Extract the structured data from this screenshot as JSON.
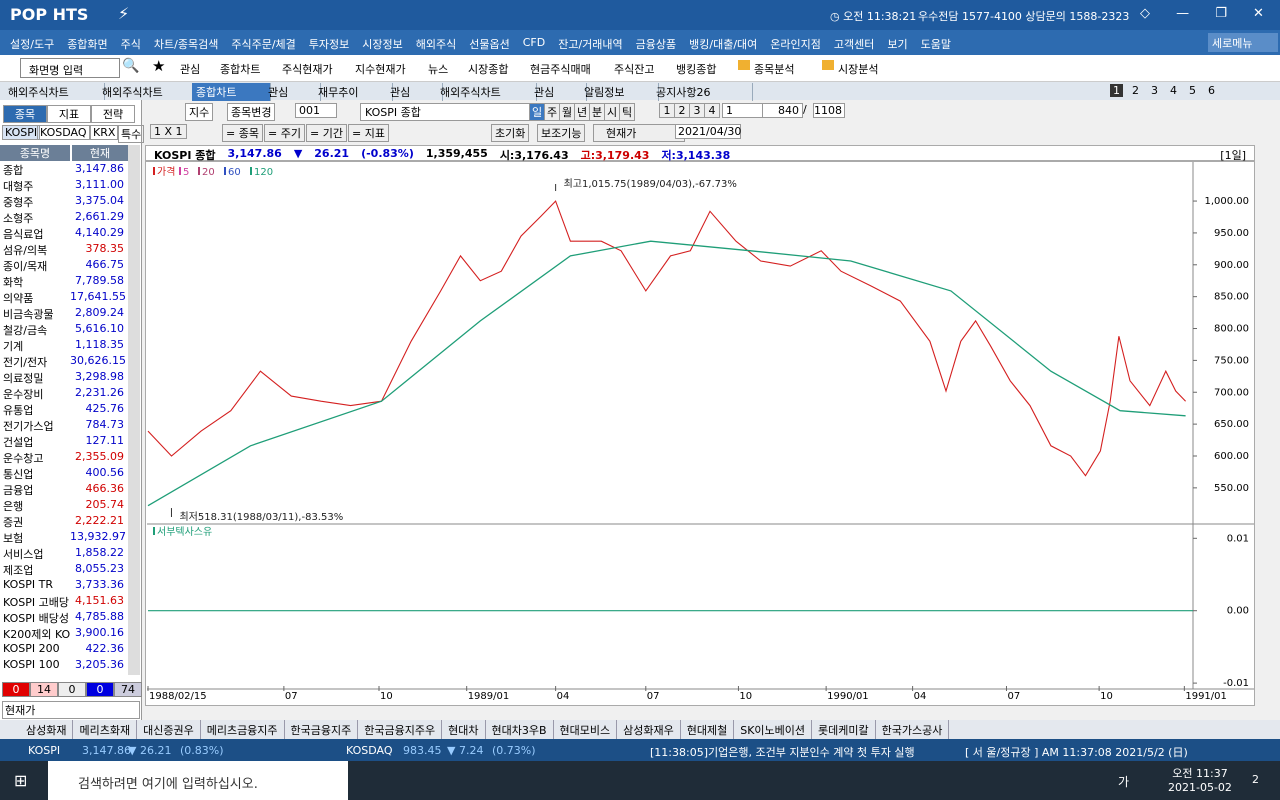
{
  "title_bar": {
    "logo": "POP HTS",
    "clock": "오전 11:38:21",
    "contact": "우수전담 1577-4100 상담문의 1588-2323"
  },
  "menu": [
    "설정/도구",
    "종합화면",
    "주식",
    "차트/종목검색",
    "주식주문/체결",
    "투자정보",
    "시장정보",
    "해외주식",
    "선물옵션",
    "CFD",
    "잔고/거래내역",
    "금융상품",
    "뱅킹/대출/대여",
    "온라인지점",
    "고객센터",
    "보기",
    "도움말"
  ],
  "menu_right": "세로메뉴",
  "toolbar": {
    "screen_input": "화면명 입력",
    "items": [
      "관심",
      "종합차트",
      "주식현재가",
      "지수현재가",
      "뉴스",
      "시장종합",
      "현금주식매매",
      "주식잔고",
      "뱅킹종합"
    ],
    "folders": [
      "종목분석",
      "시장분석"
    ]
  },
  "window_tabs": {
    "tabs": [
      "해외주식차트",
      "해외주식차트",
      "종합차트",
      "관심",
      "재무추이",
      "관심",
      "해외주식차트",
      "관심",
      "알림정보",
      "공지사항26"
    ],
    "pages": [
      "1",
      "2",
      "3",
      "4",
      "5",
      "6"
    ]
  },
  "left_panel": {
    "tabs": [
      "종목",
      "지표",
      "전략"
    ],
    "markets": [
      "KOSPI",
      "KOSDAQ",
      "KRX",
      "특수"
    ],
    "headers": [
      "종목명",
      "현재"
    ],
    "rows": [
      {
        "name": "종합",
        "value": "3,147.86",
        "color": "#0000c8"
      },
      {
        "name": "대형주",
        "value": "3,111.00",
        "color": "#0000c8"
      },
      {
        "name": "중형주",
        "value": "3,375.04",
        "color": "#0000c8"
      },
      {
        "name": "소형주",
        "value": "2,661.29",
        "color": "#0000c8"
      },
      {
        "name": "음식료업",
        "value": "4,140.29",
        "color": "#0000c8"
      },
      {
        "name": "섬유/의복",
        "value": "378.35",
        "color": "#d00000"
      },
      {
        "name": "종이/목재",
        "value": "466.75",
        "color": "#0000c8"
      },
      {
        "name": "화학",
        "value": "7,789.58",
        "color": "#0000c8"
      },
      {
        "name": "의약품",
        "value": "17,641.55",
        "color": "#0000c8"
      },
      {
        "name": "비금속광물",
        "value": "2,809.24",
        "color": "#0000c8"
      },
      {
        "name": "철강/금속",
        "value": "5,616.10",
        "color": "#0000c8"
      },
      {
        "name": "기계",
        "value": "1,118.35",
        "color": "#0000c8"
      },
      {
        "name": "전기/전자",
        "value": "30,626.15",
        "color": "#0000c8"
      },
      {
        "name": "의료정밀",
        "value": "3,298.98",
        "color": "#0000c8"
      },
      {
        "name": "운수장비",
        "value": "2,231.26",
        "color": "#0000c8"
      },
      {
        "name": "유통업",
        "value": "425.76",
        "color": "#0000c8"
      },
      {
        "name": "전기가스업",
        "value": "784.73",
        "color": "#0000c8"
      },
      {
        "name": "건설업",
        "value": "127.11",
        "color": "#0000c8"
      },
      {
        "name": "운수창고",
        "value": "2,355.09",
        "color": "#d00000"
      },
      {
        "name": "통신업",
        "value": "400.56",
        "color": "#0000c8"
      },
      {
        "name": "금융업",
        "value": "466.36",
        "color": "#d00000"
      },
      {
        "name": "은행",
        "value": "205.74",
        "color": "#d00000"
      },
      {
        "name": "증권",
        "value": "2,222.21",
        "color": "#d00000"
      },
      {
        "name": "보험",
        "value": "13,932.97",
        "color": "#0000c8"
      },
      {
        "name": "서비스업",
        "value": "1,858.22",
        "color": "#0000c8"
      },
      {
        "name": "제조업",
        "value": "8,055.23",
        "color": "#0000c8"
      },
      {
        "name": "KOSPI TR",
        "value": "3,733.36",
        "color": "#0000c8"
      },
      {
        "name": "KOSPI 고배당",
        "value": "4,151.63",
        "color": "#d00000"
      },
      {
        "name": "KOSPI 배당성",
        "value": "4,785.88",
        "color": "#0000c8"
      },
      {
        "name": "K200제외 KO",
        "value": "3,900.16",
        "color": "#0000c8"
      },
      {
        "name": "KOSPI 200",
        "value": "422.36",
        "color": "#0000c8"
      },
      {
        "name": "KOSPI 100",
        "value": "3,205.36",
        "color": "#0000c8"
      }
    ],
    "counts": [
      "0",
      "14",
      "0",
      "0",
      "74"
    ],
    "footer": "현재가"
  },
  "chart_toolbar": {
    "kind": "지수",
    "change": "종목변경",
    "code": "001",
    "name": "KOSPI 종합",
    "periods": [
      "일",
      "주",
      "월",
      "년",
      "분",
      "시",
      "틱"
    ],
    "numbers": [
      "1",
      "2",
      "3",
      "4"
    ],
    "interval": "1",
    "count": "840",
    "separator": "/",
    "total": "1108",
    "layout": "1 X 1",
    "filters": [
      "= 종목",
      "= 주기",
      "= 기간",
      "= 지표"
    ],
    "reset": "초기화",
    "aux": "보조기능",
    "price_type": "현재가",
    "date": "2021/04/30"
  },
  "quote": {
    "name": "KOSPI 종합",
    "price": "3,147.86",
    "arrow": "▼",
    "change": "26.21",
    "pct": "(-0.83%)",
    "volume": "1,359,455",
    "open": "시:3,176.43",
    "high": "고:3,179.43",
    "low": "저:3,143.38",
    "period": "[1일]"
  },
  "chart_data": [
    {
      "type": "line",
      "xlim": [
        0,
        846
      ],
      "ylim": [
        498,
        1055
      ],
      "yticks": [
        {
          "value": 1000,
          "label": "1,000.00"
        },
        {
          "value": 950,
          "label": "950.00"
        },
        {
          "value": 900,
          "label": "900.00"
        },
        {
          "value": 850,
          "label": "850.00"
        },
        {
          "value": 800,
          "label": "800.00"
        },
        {
          "value": 750,
          "label": "750.00"
        },
        {
          "value": 700,
          "label": "700.00"
        },
        {
          "value": 650,
          "label": "650.00"
        },
        {
          "value": 600,
          "label": "600.00"
        },
        {
          "value": 550,
          "label": "550.00"
        }
      ],
      "ma_legend": [
        {
          "label": "5",
          "color": "#d040a0"
        },
        {
          "label": "20",
          "color": "#b04070"
        },
        {
          "label": "60",
          "color": "#3050c0"
        }
      ],
      "series": [
        {
          "name": "가격",
          "color": "#d42020",
          "x": [
            0,
            19,
            43,
            67,
            91,
            116,
            140,
            164,
            189,
            213,
            237,
            253,
            269,
            286,
            302,
            318,
            330,
            342,
            367,
            383,
            403,
            423,
            439,
            455,
            476,
            496,
            520,
            545,
            561,
            585,
            609,
            633,
            646,
            658,
            670,
            682,
            698,
            714,
            731,
            747,
            759,
            771,
            779,
            786,
            795,
            811,
            824,
            832,
            840
          ],
          "values": [
            639,
            600,
            639,
            671,
            733,
            694,
            686,
            679,
            686,
            780,
            859,
            914,
            875,
            890,
            945,
            976,
            1000,
            937,
            937,
            922,
            859,
            914,
            922,
            984,
            937,
            906,
            898,
            922,
            890,
            867,
            843,
            780,
            702,
            780,
            812,
            773,
            718,
            679,
            616,
            600,
            569,
            608,
            686,
            788,
            718,
            679,
            733,
            702,
            686
          ]
        },
        {
          "name": "120",
          "color": "#1f9e78",
          "x": [
            0,
            83,
            189,
            269,
            342,
            407,
            488,
            569,
            650,
            731,
            787,
            840
          ],
          "values": [
            522,
            616,
            686,
            812,
            914,
            937,
            922,
            906,
            859,
            733,
            671,
            663
          ]
        }
      ],
      "annotations": [
        {
          "text": "최고1,015.75(1989/04/03),-67.73%",
          "x": 330,
          "y": 1015.75
        },
        {
          "text": "최저518.31(1988/03/11),-83.53%",
          "x": 19,
          "y": 518.31
        }
      ]
    },
    {
      "type": "line",
      "xlim": [
        0,
        846
      ],
      "ylim": [
        -0.0104,
        0.0117
      ],
      "yticks": [
        0.01,
        {
          "value": 0,
          "label": "0.00"
        },
        -0.01
      ],
      "xticks": [
        {
          "value": 0,
          "label": "1988/02/15"
        },
        {
          "value": 110,
          "label": "07"
        },
        {
          "value": 187,
          "label": "10"
        },
        {
          "value": 258,
          "label": "1989/01"
        },
        {
          "value": 330,
          "label": "04"
        },
        {
          "value": 403,
          "label": "07"
        },
        {
          "value": 478,
          "label": "10"
        },
        {
          "value": 549,
          "label": "1990/01"
        },
        {
          "value": 619,
          "label": "04"
        },
        {
          "value": 695,
          "label": "07"
        },
        {
          "value": 770,
          "label": "10"
        },
        {
          "value": 839,
          "label": "1991/01"
        }
      ],
      "series": [
        {
          "name": "서부텍사스유",
          "color": "#1f9e78",
          "x": [
            0,
            846
          ],
          "values": [
            0,
            0
          ]
        }
      ]
    }
  ],
  "bottom_tabs": [
    "삼성화재",
    "메리츠화재",
    "대신증권우",
    "메리츠금융지주",
    "한국금융지주",
    "한국금융지주우",
    "현대차",
    "현대차3우B",
    "현대모비스",
    "삼성화재우",
    "현대제철",
    "SK이노베이션",
    "롯데케미칼",
    "한국가스공사"
  ],
  "status": {
    "kospi_label": "KOSPI",
    "kospi_value": "3,147.86",
    "kospi_change": "▼ 26.21",
    "kospi_pct": "(0.83%)",
    "kosdaq_label": "KOSDAQ",
    "kosdaq_value": "983.45",
    "kosdaq_change": "▼ 7.24",
    "kosdaq_pct": "(0.73%)",
    "news": "[11:38:05]기업은행, 조건부 지분인수 계약 첫 투자 실행",
    "market": "[ 서 울/정규장 ] AM 11:37:08  2021/5/2 (日)"
  },
  "taskbar": {
    "search": "검색하려면 여기에 입력하십시오.",
    "ime": "가",
    "time": "오전 11:37",
    "date": "2021-05-02",
    "notifications": "2"
  }
}
